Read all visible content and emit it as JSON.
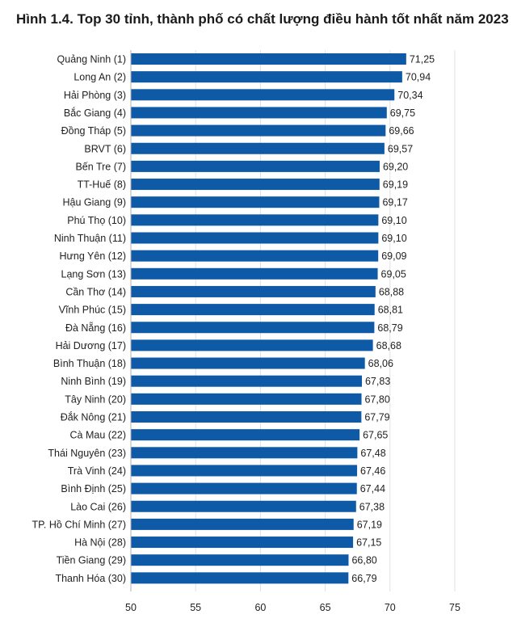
{
  "title": "Hình 1.4. Top 30 tỉnh, thành phố có chất lượng điều hành tốt nhất năm 2023",
  "colors": {
    "bar": "#0e5aa7",
    "grid": "#e0e0e0",
    "axis": "#b0b0b0"
  },
  "chart_data": {
    "type": "bar",
    "orientation": "horizontal",
    "title": "Hình 1.4. Top 30 tỉnh, thành phố có chất lượng điều hành tốt nhất năm 2023",
    "xlabel": "",
    "ylabel": "",
    "xlim": [
      50,
      75
    ],
    "ticks": [
      50,
      55,
      60,
      65,
      70,
      75
    ],
    "tick_labels": [
      "50",
      "55",
      "60",
      "65",
      "70",
      "75"
    ],
    "grid": true,
    "categories": [
      "Quảng Ninh (1)",
      "Long An (2)",
      "Hải Phòng (3)",
      "Bắc Giang (4)",
      "Đồng Tháp (5)",
      "BRVT (6)",
      "Bến Tre (7)",
      "TT-Huế (8)",
      "Hậu Giang (9)",
      "Phú Thọ (10)",
      "Ninh Thuận (11)",
      "Hưng Yên (12)",
      "Lạng Sơn (13)",
      "Cần Thơ (14)",
      "Vĩnh Phúc (15)",
      "Đà Nẵng (16)",
      "Hải Dương (17)",
      "Bình Thuận (18)",
      "Ninh Bình (19)",
      "Tây Ninh (20)",
      "Đắk Nông (21)",
      "Cà Mau (22)",
      "Thái Nguyên (23)",
      "Trà Vinh (24)",
      "Bình Định (25)",
      "Lào Cai (26)",
      "TP. Hồ Chí Minh (27)",
      "Hà Nội (28)",
      "Tiền Giang (29)",
      "Thanh Hóa (30)"
    ],
    "values": [
      71.25,
      70.94,
      70.34,
      69.75,
      69.66,
      69.57,
      69.2,
      69.19,
      69.17,
      69.1,
      69.1,
      69.09,
      69.05,
      68.88,
      68.81,
      68.79,
      68.68,
      68.06,
      67.83,
      67.8,
      67.79,
      67.65,
      67.48,
      67.46,
      67.44,
      67.38,
      67.19,
      67.15,
      66.8,
      66.79
    ],
    "value_labels": [
      "71,25",
      "70,94",
      "70,34",
      "69,75",
      "69,66",
      "69,57",
      "69,20",
      "69,19",
      "69,17",
      "69,10",
      "69,10",
      "69,09",
      "69,05",
      "68,88",
      "68,81",
      "68,79",
      "68,68",
      "68,06",
      "67,83",
      "67,80",
      "67,79",
      "67,65",
      "67,48",
      "67,46",
      "67,44",
      "67,38",
      "67,19",
      "67,15",
      "66,80",
      "66,79"
    ]
  }
}
